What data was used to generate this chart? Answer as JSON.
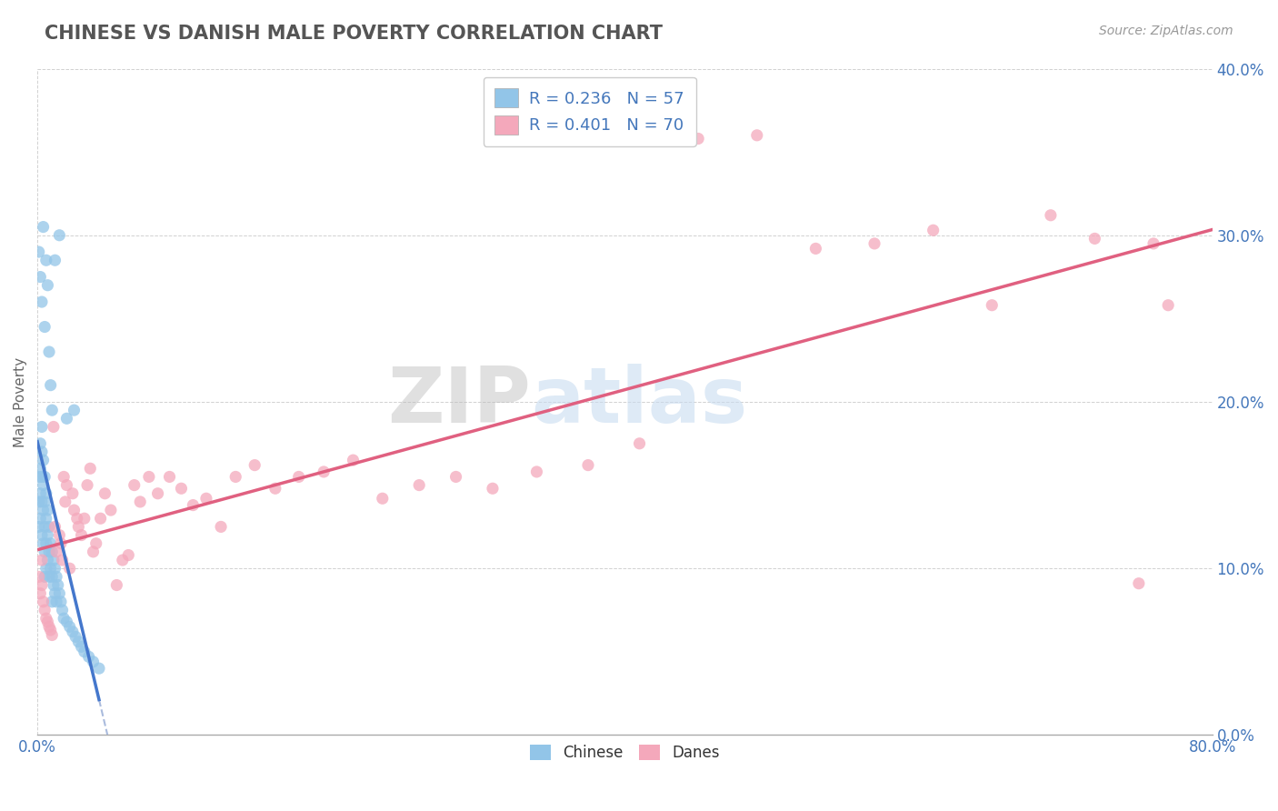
{
  "title": "CHINESE VS DANISH MALE POVERTY CORRELATION CHART",
  "source": "Source: ZipAtlas.com",
  "ylabel": "Male Poverty",
  "xlim": [
    0,
    0.8
  ],
  "ylim": [
    0,
    0.4
  ],
  "ytick_vals": [
    0,
    0.1,
    0.2,
    0.3,
    0.4
  ],
  "chinese_color": "#92C5E8",
  "chinese_line_color": "#4477CC",
  "danish_color": "#F4A8BB",
  "danish_line_color": "#E06080",
  "dashed_color": "#AABBDD",
  "chinese_R": 0.236,
  "chinese_N": 57,
  "danish_R": 0.401,
  "danish_N": 70,
  "legend_text_color": "#4477BB",
  "watermark_color": "#C8DCF0",
  "chinese_scatter_x": [
    0.001,
    0.001,
    0.001,
    0.002,
    0.002,
    0.002,
    0.002,
    0.003,
    0.003,
    0.003,
    0.003,
    0.003,
    0.004,
    0.004,
    0.004,
    0.004,
    0.005,
    0.005,
    0.005,
    0.005,
    0.005,
    0.006,
    0.006,
    0.006,
    0.006,
    0.007,
    0.007,
    0.007,
    0.008,
    0.008,
    0.008,
    0.009,
    0.009,
    0.01,
    0.01,
    0.01,
    0.011,
    0.011,
    0.012,
    0.012,
    0.013,
    0.013,
    0.014,
    0.015,
    0.016,
    0.017,
    0.018,
    0.02,
    0.022,
    0.024,
    0.026,
    0.028,
    0.03,
    0.032,
    0.035,
    0.038,
    0.042
  ],
  "chinese_scatter_y": [
    0.155,
    0.14,
    0.125,
    0.175,
    0.16,
    0.145,
    0.13,
    0.185,
    0.17,
    0.155,
    0.14,
    0.12,
    0.165,
    0.15,
    0.135,
    0.115,
    0.155,
    0.14,
    0.125,
    0.11,
    0.095,
    0.145,
    0.13,
    0.115,
    0.1,
    0.135,
    0.12,
    0.105,
    0.125,
    0.11,
    0.095,
    0.115,
    0.1,
    0.11,
    0.095,
    0.08,
    0.105,
    0.09,
    0.1,
    0.085,
    0.095,
    0.08,
    0.09,
    0.085,
    0.08,
    0.075,
    0.07,
    0.068,
    0.065,
    0.062,
    0.059,
    0.056,
    0.053,
    0.05,
    0.047,
    0.044,
    0.04
  ],
  "chinese_extra_x": [
    0.001,
    0.002,
    0.003,
    0.004,
    0.005,
    0.006,
    0.007,
    0.008,
    0.009,
    0.01,
    0.012,
    0.015,
    0.02,
    0.025
  ],
  "chinese_extra_y": [
    0.29,
    0.275,
    0.26,
    0.305,
    0.245,
    0.285,
    0.27,
    0.23,
    0.21,
    0.195,
    0.285,
    0.3,
    0.19,
    0.195
  ],
  "danish_scatter_x": [
    0.001,
    0.002,
    0.003,
    0.003,
    0.004,
    0.005,
    0.006,
    0.007,
    0.008,
    0.009,
    0.01,
    0.011,
    0.012,
    0.013,
    0.015,
    0.016,
    0.017,
    0.018,
    0.019,
    0.02,
    0.022,
    0.024,
    0.025,
    0.027,
    0.028,
    0.03,
    0.032,
    0.034,
    0.036,
    0.038,
    0.04,
    0.043,
    0.046,
    0.05,
    0.054,
    0.058,
    0.062,
    0.066,
    0.07,
    0.076,
    0.082,
    0.09,
    0.098,
    0.106,
    0.115,
    0.125,
    0.135,
    0.148,
    0.162,
    0.178,
    0.195,
    0.215,
    0.235,
    0.26,
    0.285,
    0.31,
    0.34,
    0.375,
    0.41,
    0.45,
    0.49,
    0.53,
    0.57,
    0.61,
    0.65,
    0.69,
    0.72,
    0.75,
    0.76,
    0.77
  ],
  "danish_scatter_y": [
    0.095,
    0.085,
    0.105,
    0.09,
    0.08,
    0.075,
    0.07,
    0.068,
    0.065,
    0.063,
    0.06,
    0.185,
    0.125,
    0.11,
    0.12,
    0.115,
    0.105,
    0.155,
    0.14,
    0.15,
    0.1,
    0.145,
    0.135,
    0.13,
    0.125,
    0.12,
    0.13,
    0.15,
    0.16,
    0.11,
    0.115,
    0.13,
    0.145,
    0.135,
    0.09,
    0.105,
    0.108,
    0.15,
    0.14,
    0.155,
    0.145,
    0.155,
    0.148,
    0.138,
    0.142,
    0.125,
    0.155,
    0.162,
    0.148,
    0.155,
    0.158,
    0.165,
    0.142,
    0.15,
    0.155,
    0.148,
    0.158,
    0.162,
    0.175,
    0.358,
    0.36,
    0.292,
    0.295,
    0.303,
    0.258,
    0.312,
    0.298,
    0.091,
    0.295,
    0.258
  ]
}
